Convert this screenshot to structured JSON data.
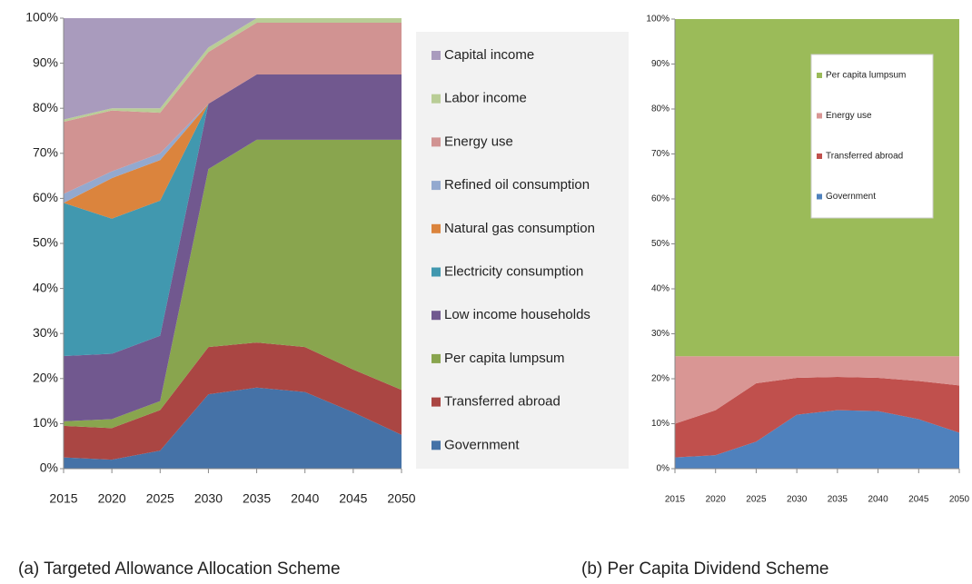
{
  "chart_data": [
    {
      "type": "stacked_area",
      "caption": "(a)  Targeted Allowance Allocation Scheme",
      "x": [
        2015,
        2020,
        2025,
        2030,
        2035,
        2040,
        2045,
        2050
      ],
      "xlim": [
        2015,
        2050
      ],
      "xticks": [
        2015,
        2020,
        2025,
        2030,
        2035,
        2040,
        2045,
        2050
      ],
      "ylim": [
        0,
        100
      ],
      "yticks": [
        {
          "value": 0,
          "label": "0%"
        },
        {
          "value": 10,
          "label": "10%"
        },
        {
          "value": 20,
          "label": "20%"
        },
        {
          "value": 30,
          "label": "30%"
        },
        {
          "value": 40,
          "label": "40%"
        },
        {
          "value": 50,
          "label": "50%"
        },
        {
          "value": 60,
          "label": "60%"
        },
        {
          "value": 70,
          "label": "70%"
        },
        {
          "value": 80,
          "label": "80%"
        },
        {
          "value": 90,
          "label": "90%"
        },
        {
          "value": 100,
          "label": "100%"
        }
      ],
      "grid": false,
      "legend": "right",
      "series": [
        {
          "name": "Government",
          "color": "#4572a7",
          "values": [
            2.5,
            2,
            4,
            16.5,
            18,
            17,
            12.5,
            7.5
          ]
        },
        {
          "name": "Transferred abroad",
          "color": "#aa4643",
          "values": [
            7,
            7,
            9,
            10.5,
            10,
            10,
            9.5,
            10
          ]
        },
        {
          "name": "Per capita lumpsum",
          "color": "#89a54e",
          "values": [
            1,
            2,
            2,
            39.5,
            45,
            46,
            51,
            55.5
          ]
        },
        {
          "name": "Low income households",
          "color": "#71588f",
          "values": [
            14.5,
            14.5,
            14.5,
            14.5,
            14.5,
            14.5,
            14.5,
            14.5
          ]
        },
        {
          "name": "Electricity consumption",
          "color": "#4198af",
          "values": [
            34,
            30,
            30,
            0,
            0,
            0,
            0,
            0
          ]
        },
        {
          "name": "Natural gas consumption",
          "color": "#db843d",
          "values": [
            0,
            9,
            9,
            0,
            0,
            0,
            0,
            0
          ]
        },
        {
          "name": "Refined oil consumption",
          "color": "#93a9cf",
          "values": [
            2,
            1.5,
            1.5,
            0,
            0,
            0,
            0,
            0
          ]
        },
        {
          "name": "Energy use",
          "color": "#d19392",
          "values": [
            16,
            13.5,
            9,
            11.5,
            11.5,
            11.5,
            11.5,
            11.5
          ]
        },
        {
          "name": "Labor income",
          "color": "#b9cd96",
          "values": [
            0.5,
            0.5,
            1,
            1,
            1,
            1,
            1,
            1
          ]
        },
        {
          "name": "Capital income",
          "color": "#a99bbd",
          "values": [
            22.5,
            20,
            20,
            6.5,
            0,
            0,
            0,
            0
          ]
        }
      ]
    },
    {
      "type": "stacked_area",
      "caption": "(b) Per Capita Dividend Scheme",
      "x": [
        2015,
        2020,
        2025,
        2030,
        2035,
        2040,
        2045,
        2050
      ],
      "xlim": [
        2015,
        2050
      ],
      "xticks": [
        2015,
        2020,
        2025,
        2030,
        2035,
        2040,
        2045,
        2050
      ],
      "ylim": [
        0,
        100
      ],
      "yticks": [
        {
          "value": 0,
          "label": "0%"
        },
        {
          "value": 10,
          "label": "10%"
        },
        {
          "value": 20,
          "label": "20%"
        },
        {
          "value": 30,
          "label": "30%"
        },
        {
          "value": 40,
          "label": "40%"
        },
        {
          "value": 50,
          "label": "50%"
        },
        {
          "value": 60,
          "label": "60%"
        },
        {
          "value": 70,
          "label": "70%"
        },
        {
          "value": 80,
          "label": "80%"
        },
        {
          "value": 90,
          "label": "90%"
        },
        {
          "value": 100,
          "label": "100%"
        }
      ],
      "grid": false,
      "legend": "inside-top-right",
      "series": [
        {
          "name": "Government",
          "color": "#4f81bd",
          "values": [
            2.5,
            3,
            6,
            12,
            13,
            12.8,
            11,
            8
          ]
        },
        {
          "name": "Transferred abroad",
          "color": "#c0504d",
          "values": [
            7.5,
            10,
            13,
            8.2,
            7.4,
            7.4,
            8.5,
            10.5
          ]
        },
        {
          "name": "Energy use",
          "color": "#d99694",
          "values": [
            15,
            12,
            6,
            4.8,
            4.6,
            4.8,
            5.5,
            6.5
          ]
        },
        {
          "name": "Per capita lumpsum",
          "color": "#9bbb59",
          "values": [
            75,
            75,
            75,
            75,
            75,
            75,
            75,
            75
          ]
        }
      ]
    }
  ]
}
